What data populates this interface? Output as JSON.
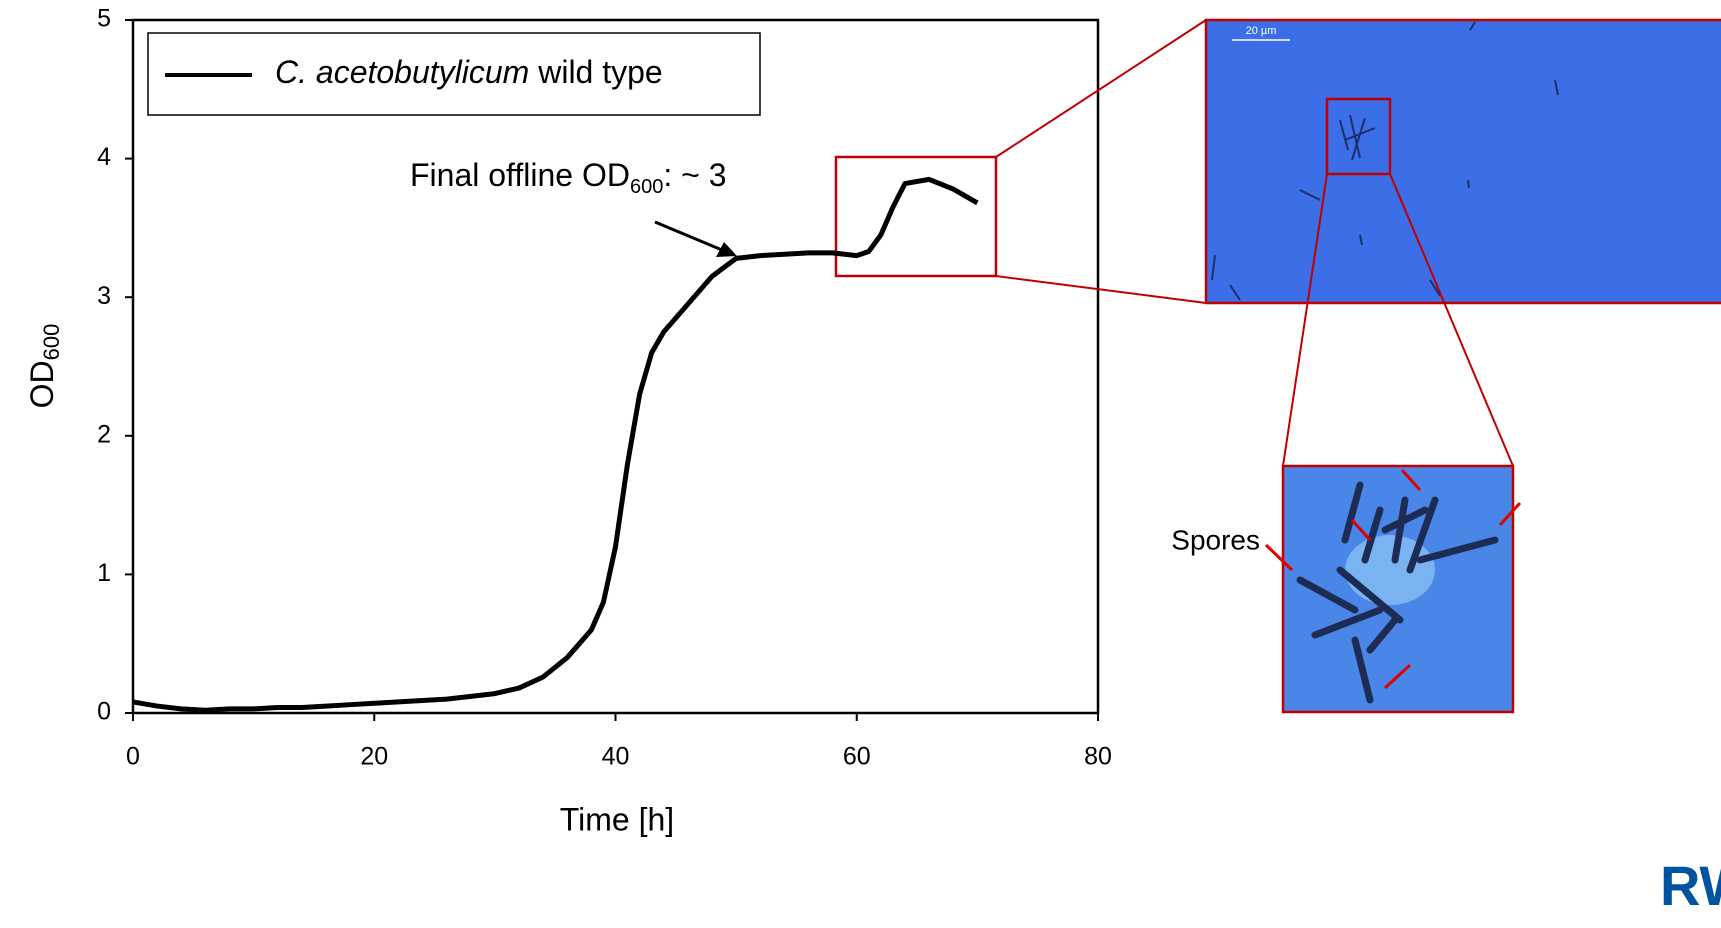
{
  "chart_data": {
    "type": "line",
    "x_label": "Time [h]",
    "y_label": {
      "text": "OD",
      "subscript": "600"
    },
    "legend": {
      "italic": "C. acetobutylicum",
      "text": "wild type"
    },
    "annotation": {
      "text": "Final offline OD",
      "subscript": "600",
      "suffix": ": ~ 3"
    },
    "inset_label": "Spores",
    "scale_bar": "20 µm",
    "logo": "RWTH",
    "xlim": [
      0,
      80
    ],
    "xticks": [
      0,
      20,
      40,
      60,
      80
    ],
    "ylim": [
      0,
      5
    ],
    "yticks": [
      0,
      1,
      2,
      3,
      4,
      5
    ],
    "x": [
      0,
      2,
      4,
      6,
      8,
      10,
      12,
      14,
      16,
      18,
      20,
      22,
      24,
      26,
      28,
      30,
      32,
      34,
      36,
      38,
      39,
      40,
      41,
      42,
      43,
      44,
      46,
      48,
      50,
      52,
      54,
      56,
      58,
      60,
      61,
      62,
      63,
      64,
      66,
      68,
      70
    ],
    "series": [
      {
        "color": "#000000",
        "values": [
          0.08,
          0.05,
          0.03,
          0.02,
          0.03,
          0.03,
          0.04,
          0.04,
          0.05,
          0.06,
          0.07,
          0.08,
          0.09,
          0.1,
          0.12,
          0.14,
          0.18,
          0.26,
          0.4,
          0.6,
          0.8,
          1.2,
          1.8,
          2.3,
          2.6,
          2.75,
          2.95,
          3.15,
          3.28,
          3.3,
          3.31,
          3.32,
          3.32,
          3.3,
          3.33,
          3.45,
          3.65,
          3.82,
          3.85,
          3.78,
          3.68
        ]
      }
    ]
  }
}
